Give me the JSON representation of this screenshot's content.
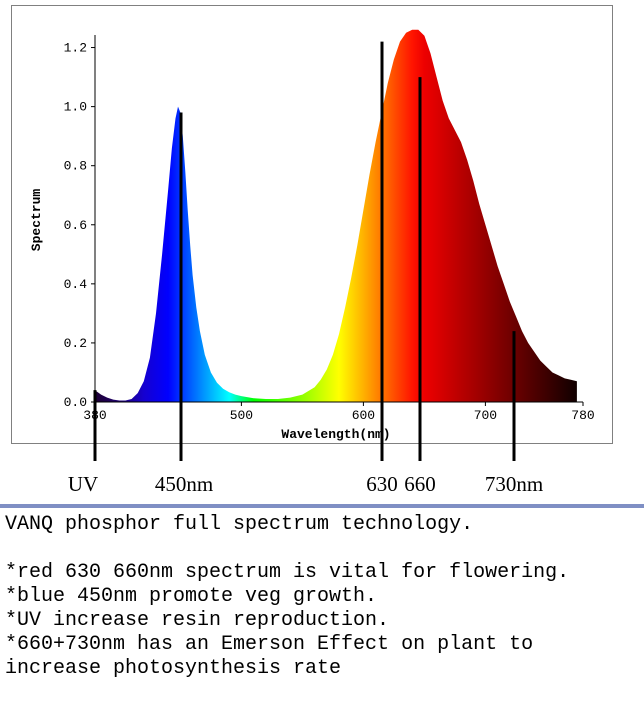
{
  "chart_data": {
    "type": "area",
    "ylabel": "Spectrum",
    "xlabel": "Wavelength(nm)",
    "xlim": [
      380,
      780
    ],
    "ylim": [
      0.0,
      1.3
    ],
    "x_ticks": [
      "380",
      "500",
      "600",
      "700",
      "780"
    ],
    "x_tick_values": [
      380,
      500,
      600,
      700,
      780
    ],
    "y_ticks": [
      "0.0",
      "0.2",
      "0.4",
      "0.6",
      "0.8",
      "1.0",
      "1.2"
    ],
    "y_tick_values": [
      0.0,
      0.2,
      0.4,
      0.6,
      0.8,
      1.0,
      1.2
    ],
    "series": [
      {
        "name": "Spectrum",
        "x": [
          380,
          385,
          390,
          395,
          400,
          405,
          410,
          415,
          420,
          425,
          430,
          435,
          440,
          443,
          446,
          448,
          450,
          452,
          454,
          456,
          458,
          460,
          463,
          466,
          470,
          475,
          480,
          485,
          490,
          495,
          500,
          510,
          520,
          530,
          540,
          550,
          560,
          565,
          570,
          575,
          580,
          585,
          590,
          595,
          600,
          605,
          610,
          615,
          620,
          625,
          630,
          635,
          640,
          645,
          650,
          655,
          660,
          665,
          670,
          675,
          680,
          685,
          690,
          695,
          700,
          705,
          710,
          715,
          720,
          725,
          730,
          735,
          740,
          745,
          750,
          755,
          760,
          765,
          770,
          775
        ],
        "y": [
          0.04,
          0.025,
          0.015,
          0.008,
          0.005,
          0.005,
          0.01,
          0.03,
          0.07,
          0.15,
          0.3,
          0.5,
          0.72,
          0.86,
          0.96,
          1.0,
          0.98,
          0.9,
          0.78,
          0.65,
          0.53,
          0.43,
          0.32,
          0.24,
          0.16,
          0.1,
          0.065,
          0.045,
          0.033,
          0.025,
          0.02,
          0.013,
          0.01,
          0.01,
          0.015,
          0.025,
          0.05,
          0.075,
          0.11,
          0.16,
          0.23,
          0.32,
          0.42,
          0.53,
          0.65,
          0.77,
          0.88,
          0.98,
          1.08,
          1.16,
          1.22,
          1.25,
          1.26,
          1.26,
          1.24,
          1.18,
          1.1,
          1.02,
          0.96,
          0.92,
          0.88,
          0.82,
          0.75,
          0.67,
          0.6,
          0.53,
          0.46,
          0.4,
          0.34,
          0.29,
          0.24,
          0.2,
          0.17,
          0.14,
          0.12,
          0.1,
          0.09,
          0.08,
          0.075,
          0.07
        ]
      }
    ],
    "markers": [
      {
        "label": "UV",
        "wavelength": 380
      },
      {
        "label": "450nm",
        "wavelength": 450
      },
      {
        "label": "630",
        "wavelength": 630
      },
      {
        "label": "660",
        "wavelength": 660
      },
      {
        "label": "730nm",
        "wavelength": 730
      }
    ]
  },
  "description": {
    "title": "VANQ phosphor full spectrum technology.",
    "bullets": [
      "*red 630 660nm spectrum is vital for flowering.",
      "*blue 450nm promote veg growth.",
      "*UV increase resin reproduction.",
      "*660+730nm has an Emerson Effect on plant to",
      "increase photosynthesis rate"
    ]
  }
}
